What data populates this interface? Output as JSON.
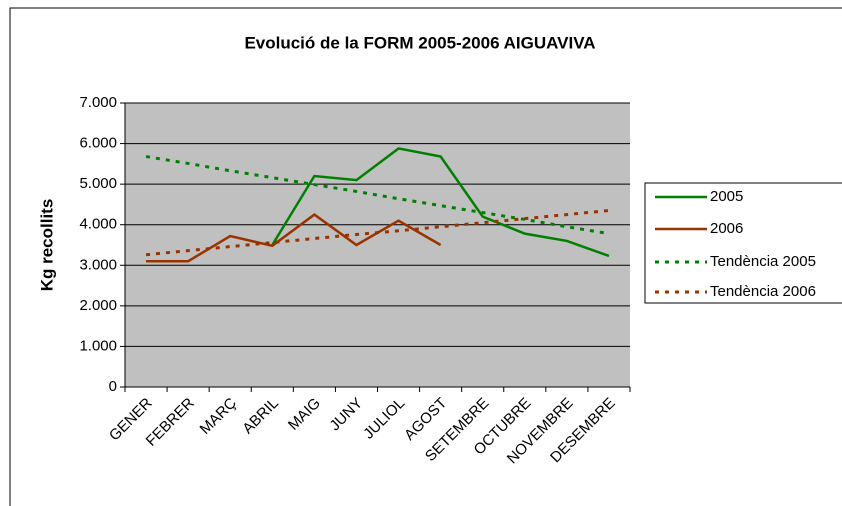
{
  "chart_data": {
    "type": "line",
    "title": "Evolució de la FORM 2005-2006 AIGUAVIVA",
    "y_label": "Kg recollits",
    "categories": [
      "GENER",
      "FEBRER",
      "MARÇ",
      "ABRIL",
      "MAIG",
      "JUNY",
      "JULIOL",
      "AGOST",
      "SETEMBRE",
      "OCTUBRE",
      "NOVEMBRE",
      "DESEMBRE"
    ],
    "series": [
      {
        "name": "2005",
        "color": "#008000",
        "dash": false,
        "values": [
          null,
          null,
          null,
          3500,
          5200,
          5100,
          5880,
          5680,
          4200,
          3780,
          3600,
          3230
        ]
      },
      {
        "name": "2006",
        "color": "#993300",
        "dash": false,
        "values": [
          3100,
          3100,
          3720,
          3480,
          4250,
          3500,
          4100,
          3500,
          null,
          null,
          null,
          null
        ]
      },
      {
        "name": "Tendència 2005",
        "color": "#008000",
        "dash": true,
        "values": [
          5680,
          5510,
          5330,
          5160,
          4990,
          4820,
          4640,
          4470,
          4300,
          4130,
          3950,
          3780
        ]
      },
      {
        "name": "Tendència 2006",
        "color": "#993300",
        "dash": true,
        "values": [
          3260,
          3360,
          3460,
          3560,
          3660,
          3760,
          3850,
          3950,
          4050,
          4150,
          4250,
          4350
        ]
      }
    ],
    "ylim": [
      0,
      7000
    ],
    "yticks": [
      0,
      {
        "value": 1000,
        "label": "1.000"
      },
      {
        "value": 2000,
        "label": "2.000"
      },
      {
        "value": 3000,
        "label": "3.000"
      },
      {
        "value": 4000,
        "label": "4.000"
      },
      {
        "value": 5000,
        "label": "5.000"
      },
      {
        "value": 6000,
        "label": "6.000"
      },
      {
        "value": 7000,
        "label": "7.000"
      }
    ],
    "grid": true,
    "legend": "right"
  }
}
